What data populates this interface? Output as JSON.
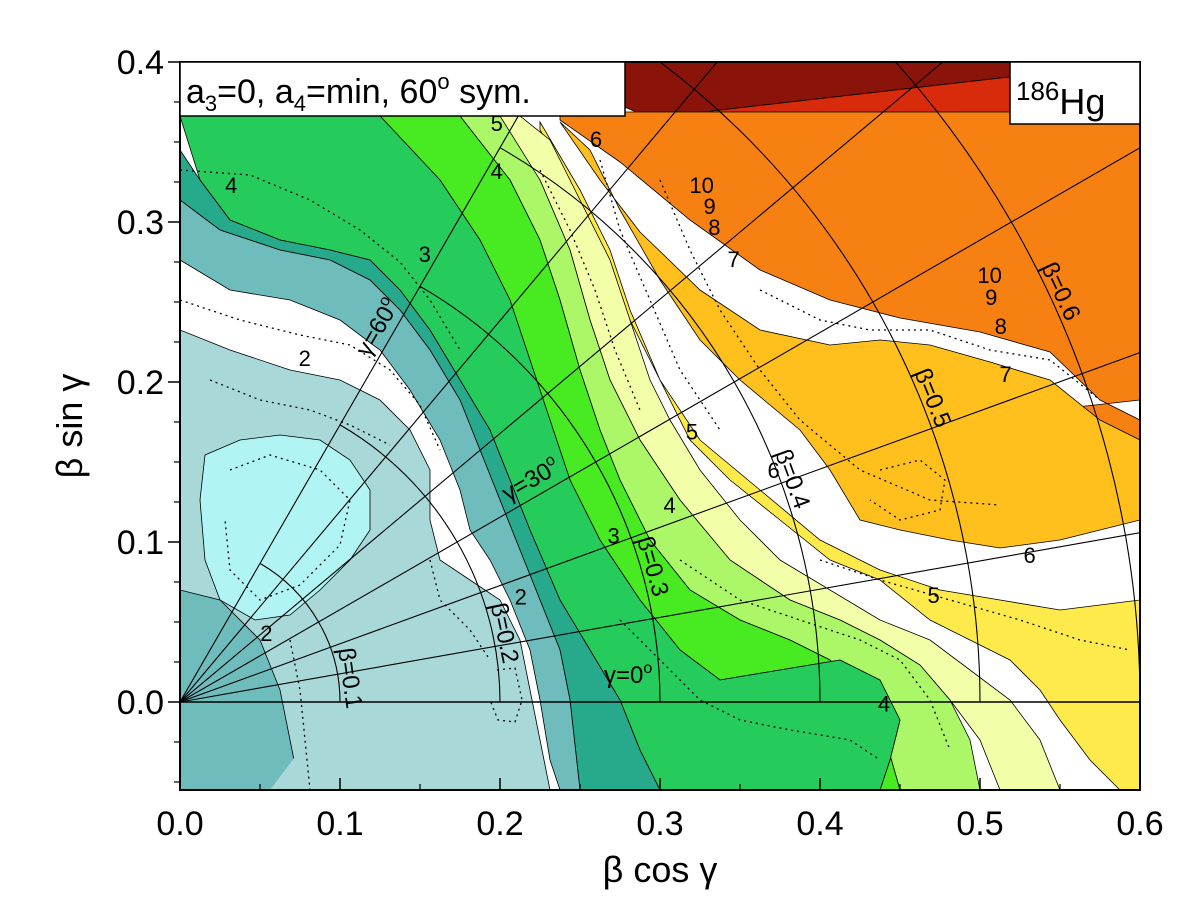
{
  "chart_data": {
    "type": "heatmap",
    "title": "",
    "xlabel": "β cos γ",
    "ylabel": "β sin γ",
    "xlim": [
      0.0,
      0.6
    ],
    "ylim": [
      -0.055,
      0.4
    ],
    "xticks": [
      "0.0",
      "0.1",
      "0.2",
      "0.3",
      "0.4",
      "0.5",
      "0.6"
    ],
    "yticks": [
      "0.0",
      "0.1",
      "0.2",
      "0.3",
      "0.4"
    ],
    "info_box": {
      "a": "a",
      "sub3": "3",
      "eq0": "=0, ",
      "a2": "a",
      "sub4": "4",
      "eqmin": "=min, 60",
      "deg": "o",
      "sym": " sym."
    },
    "nucleus": {
      "mass": "186",
      "element": "Hg"
    },
    "beta_circles": [
      {
        "beta": 0.1,
        "label": "β=0.1"
      },
      {
        "beta": 0.2,
        "label": "β=0.2"
      },
      {
        "beta": 0.3,
        "label": "β=0.3"
      },
      {
        "beta": 0.4,
        "label": "β=0.4"
      },
      {
        "beta": 0.5,
        "label": "β=0.5"
      },
      {
        "beta": 0.6,
        "label": "β=0.6"
      }
    ],
    "gamma_lines_deg": [
      0,
      10,
      20,
      30,
      40,
      50,
      60
    ],
    "gamma_labels": [
      {
        "gamma": 0,
        "label": "γ=0",
        "deg": "o"
      },
      {
        "gamma": 30,
        "label": "γ=30",
        "deg": "o"
      },
      {
        "gamma": 60,
        "label": "γ=60",
        "deg": "o"
      }
    ],
    "contour_labels": [
      {
        "text": "4",
        "x": 0.032,
        "y": 0.318
      },
      {
        "text": "5",
        "x": 0.198,
        "y": 0.357
      },
      {
        "text": "6",
        "x": 0.26,
        "y": 0.347
      },
      {
        "text": "4",
        "x": 0.198,
        "y": 0.327
      },
      {
        "text": "3",
        "x": 0.153,
        "y": 0.275
      },
      {
        "text": "2",
        "x": 0.078,
        "y": 0.21
      },
      {
        "text": "2",
        "x": 0.054,
        "y": 0.038
      },
      {
        "text": "10",
        "x": 0.326,
        "y": 0.318
      },
      {
        "text": "9",
        "x": 0.331,
        "y": 0.305
      },
      {
        "text": "8",
        "x": 0.334,
        "y": 0.292
      },
      {
        "text": "7",
        "x": 0.346,
        "y": 0.272
      },
      {
        "text": "10",
        "x": 0.506,
        "y": 0.262
      },
      {
        "text": "9",
        "x": 0.507,
        "y": 0.248
      },
      {
        "text": "8",
        "x": 0.513,
        "y": 0.23
      },
      {
        "text": "7",
        "x": 0.516,
        "y": 0.2
      },
      {
        "text": "5",
        "x": 0.32,
        "y": 0.164
      },
      {
        "text": "6",
        "x": 0.371,
        "y": 0.14
      },
      {
        "text": "4",
        "x": 0.306,
        "y": 0.118
      },
      {
        "text": "3",
        "x": 0.271,
        "y": 0.099
      },
      {
        "text": "2",
        "x": 0.213,
        "y": 0.061
      },
      {
        "text": "6",
        "x": 0.531,
        "y": 0.087
      },
      {
        "text": "5",
        "x": 0.471,
        "y": 0.062
      },
      {
        "text": "4",
        "x": 0.44,
        "y": -0.006
      }
    ],
    "colors": {
      "level_0": "#b1f4f4",
      "level_1": "#a8d8d8",
      "level_2": "#6fbcbd",
      "level_3": "#27a98c",
      "level_4": "#26cc5b",
      "level_5": "#48ea22",
      "level_6": "#acf768",
      "level_7": "#f3ffa8",
      "level_8": "#ffea4b",
      "level_9": "#ffbf1c",
      "level_10": "#f78013",
      "level_11": "#d82b0b",
      "level_12": "#8a140a",
      "level_13": "#360000"
    }
  }
}
